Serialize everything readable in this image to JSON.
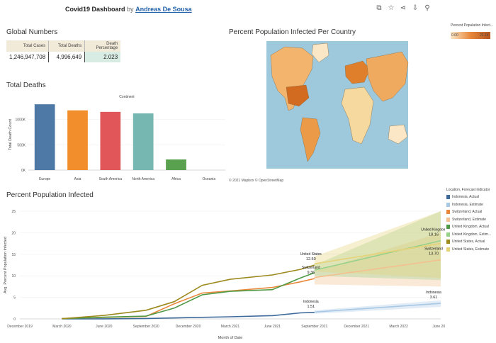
{
  "header": {
    "title": "Covid19 Dashboard",
    "by": "by",
    "author": "Andreas De Sousa",
    "tools": [
      "copy-icon",
      "star-icon",
      "share-icon",
      "download-icon",
      "person-icon"
    ]
  },
  "global_numbers": {
    "title": "Global Numbers",
    "headers": [
      "Total Cases",
      "Total Deaths",
      "Death Percentage"
    ],
    "values": [
      "1,246,947,708",
      "4,996,649",
      "2.023"
    ]
  },
  "total_deaths": {
    "title": "Total Deaths"
  },
  "map": {
    "title": "Percent Population Infected Per Country",
    "attribution": "© 2021 Mapbox  © OpenStreetMap",
    "legend_title": "Percent Population Infect...",
    "legend_min": "0.00",
    "legend_max": "23.14"
  },
  "line_section": {
    "title": "Percent Population Infected",
    "legend_title": "Location, Forecast indicator",
    "legend_items": [
      {
        "label": "Indonesia, Actual",
        "color": "#3d6a9a"
      },
      {
        "label": "Indonesia, Estimate",
        "color": "#a8c8e4"
      },
      {
        "label": "Switzerland, Actual",
        "color": "#e8873a"
      },
      {
        "label": "Switzerland, Estimate",
        "color": "#f3c08f"
      },
      {
        "label": "United Kingdom, Actual",
        "color": "#4f9a45"
      },
      {
        "label": "United Kingdom, Estim...",
        "color": "#98d18a"
      },
      {
        "label": "United States, Actual",
        "color": "#9c8a1e"
      },
      {
        "label": "United States, Estimate",
        "color": "#e6d278"
      }
    ]
  },
  "chart_data": [
    {
      "type": "bar",
      "title": "Continent",
      "xlabel": "",
      "ylabel": "Total Death Count",
      "categories": [
        "Europe",
        "Asia",
        "South America",
        "North America",
        "Africa",
        "Oceania"
      ],
      "values": [
        1300000,
        1180000,
        1150000,
        1120000,
        210000,
        0
      ],
      "colors": [
        "#4e79a7",
        "#f28e2b",
        "#e15759",
        "#76b7b2",
        "#59a14f",
        "#edc948"
      ],
      "ylim": [
        0,
        1400000
      ],
      "yticks": [
        0,
        500000,
        1000000
      ],
      "ytick_labels": [
        "0K",
        "500K",
        "1000K"
      ]
    },
    {
      "type": "line",
      "title": "",
      "xlabel": "Month of Date",
      "ylabel": "Avg. Percent Population Infected",
      "ylim": [
        0,
        25
      ],
      "yticks": [
        0,
        5,
        10,
        15,
        20,
        25
      ],
      "xlim": [
        "2019-12",
        "2022-06"
      ],
      "xticks": [
        "December 2019",
        "March 2020",
        "June 2020",
        "September 2020",
        "December 2020",
        "March 2021",
        "June 2021",
        "September 2021",
        "December 2021",
        "March 2022",
        "June 2022"
      ],
      "series": [
        {
          "name": "Indonesia, Actual",
          "color": "#3d6a9a",
          "x": [
            "2020-03",
            "2020-06",
            "2020-09",
            "2020-12",
            "2021-03",
            "2021-06",
            "2021-08",
            "2021-09"
          ],
          "y": [
            0.0,
            0.02,
            0.1,
            0.3,
            0.5,
            0.75,
            1.4,
            1.51
          ]
        },
        {
          "name": "Indonesia, Estimate",
          "color": "#a8c8e4",
          "x": [
            "2021-09",
            "2022-06"
          ],
          "y": [
            1.6,
            3.61
          ],
          "band": [
            [
              1.2,
              2.0
            ],
            [
              2.8,
              4.3
            ]
          ]
        },
        {
          "name": "Switzerland, Actual",
          "color": "#e8873a",
          "x": [
            "2020-03",
            "2020-06",
            "2020-09",
            "2020-11",
            "2021-01",
            "2021-03",
            "2021-06",
            "2021-08",
            "2021-09"
          ],
          "y": [
            0.1,
            0.35,
            0.6,
            3.5,
            6.0,
            6.5,
            7.3,
            8.6,
            9.36
          ]
        },
        {
          "name": "Switzerland, Estimate",
          "color": "#f3c08f",
          "x": [
            "2021-09",
            "2022-06"
          ],
          "y": [
            9.6,
            13.7
          ],
          "band": [
            [
              8.0,
              11.0
            ],
            [
              7.5,
              20.0
            ]
          ]
        },
        {
          "name": "United Kingdom, Actual",
          "color": "#4f9a45",
          "x": [
            "2020-03",
            "2020-06",
            "2020-09",
            "2020-11",
            "2021-01",
            "2021-03",
            "2021-06",
            "2021-08",
            "2021-09"
          ],
          "y": [
            0.05,
            0.4,
            0.65,
            2.5,
            5.6,
            6.4,
            6.8,
            9.5,
            10.7
          ]
        },
        {
          "name": "United Kingdom, Estimate",
          "color": "#98d18a",
          "x": [
            "2021-09",
            "2022-06"
          ],
          "y": [
            11.3,
            18.16
          ],
          "band": [
            [
              10.0,
              12.5
            ],
            [
              9.0,
              25.0
            ]
          ]
        },
        {
          "name": "United States, Actual",
          "color": "#9c8a1e",
          "x": [
            "2020-03",
            "2020-06",
            "2020-09",
            "2020-11",
            "2021-01",
            "2021-03",
            "2021-06",
            "2021-08",
            "2021-09"
          ],
          "y": [
            0.05,
            0.8,
            2.0,
            4.0,
            7.8,
            9.2,
            10.2,
            11.5,
            12.5
          ]
        },
        {
          "name": "United States, Estimate",
          "color": "#e6d278",
          "x": [
            "2021-09",
            "2022-06"
          ],
          "y": [
            12.8,
            17.5
          ],
          "band": [
            [
              11.0,
              14.5
            ],
            [
              9.5,
              25.0
            ]
          ]
        }
      ],
      "annotations": [
        {
          "country": "United States",
          "value": "12.50",
          "x": "2021-09",
          "y": 12.5
        },
        {
          "country": "Switzerland",
          "value": "9.36",
          "x": "2021-09",
          "y": 9.36
        },
        {
          "country": "Indonesia",
          "value": "1.51",
          "x": "2021-09",
          "y": 1.51
        },
        {
          "country": "United Kingdom",
          "value": "18.16",
          "x": "2022-06",
          "y": 18.16
        },
        {
          "country": "Switzerland",
          "value": "13.70",
          "x": "2022-06",
          "y": 13.7
        },
        {
          "country": "Indonesia",
          "value": "3.61",
          "x": "2022-06",
          "y": 3.61
        }
      ]
    }
  ]
}
